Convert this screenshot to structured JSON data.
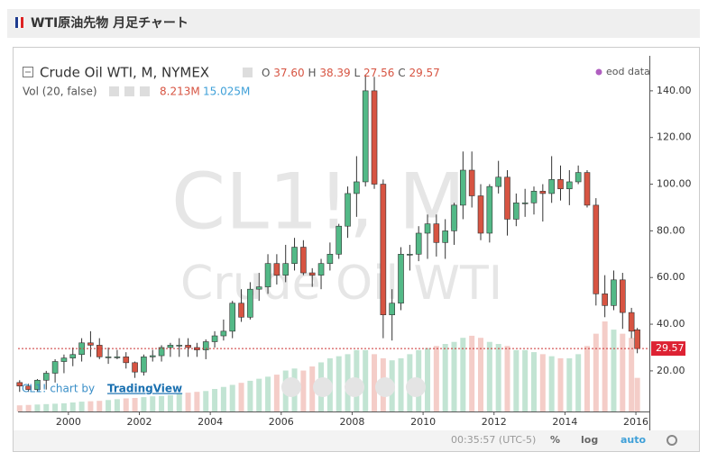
{
  "page_title": "WTI原油先物 月足チャート",
  "chart_data": {
    "type": "candlestick",
    "title": "Crude Oil WTI, M, NYMEX",
    "ohlc_legend": {
      "open_label": "O",
      "open": {
        "value": 37.6,
        "label": "37.60"
      },
      "high_label": "H",
      "high": {
        "value": 38.39,
        "label": "38.39"
      },
      "low_label": "L",
      "low": {
        "value": 27.56,
        "label": "27.56"
      },
      "close_label": "C",
      "close": {
        "value": 29.57,
        "label": "29.57"
      }
    },
    "volume_legend": {
      "name": "Vol (20, false)",
      "volume": {
        "value": 8.213,
        "label": "8.213M"
      },
      "volume_ma": {
        "value": 15.025,
        "label": "15.025M"
      }
    },
    "source_label": "eod data",
    "watermark": [
      "CL1!, M",
      "Crude Oil WTI"
    ],
    "credit": {
      "text": "CL1! chart by",
      "link": "TradingView"
    },
    "last_price": {
      "value": 29.57,
      "label": "29.57"
    },
    "x": [
      1998.625,
      1998.875,
      1999.125,
      1999.375,
      1999.625,
      1999.875,
      2000.125,
      2000.375,
      2000.625,
      2000.875,
      2001.125,
      2001.375,
      2001.625,
      2001.875,
      2002.125,
      2002.375,
      2002.625,
      2002.875,
      2003.125,
      2003.375,
      2003.625,
      2003.875,
      2004.125,
      2004.375,
      2004.625,
      2004.875,
      2005.125,
      2005.375,
      2005.625,
      2005.875,
      2006.125,
      2006.375,
      2006.625,
      2006.875,
      2007.125,
      2007.375,
      2007.625,
      2007.875,
      2008.125,
      2008.375,
      2008.625,
      2008.875,
      2009.125,
      2009.375,
      2009.625,
      2009.875,
      2010.125,
      2010.375,
      2010.625,
      2010.875,
      2011.125,
      2011.375,
      2011.625,
      2011.875,
      2012.125,
      2012.375,
      2012.625,
      2012.875,
      2013.125,
      2013.375,
      2013.625,
      2013.875,
      2014.125,
      2014.375,
      2014.625,
      2014.875,
      2015.125,
      2015.375,
      2015.625,
      2015.875,
      2016.04
    ],
    "open": [
      15,
      13.5,
      12,
      16,
      19,
      24,
      25.5,
      27,
      32,
      31,
      26,
      26,
      26,
      23.5,
      19.5,
      26,
      26.5,
      30,
      31,
      31,
      30,
      29,
      32.5,
      35,
      37,
      49,
      43,
      55,
      56,
      66,
      61,
      66,
      73,
      62,
      61,
      66,
      70,
      82,
      96,
      101,
      140,
      100,
      44,
      49,
      70,
      70,
      79,
      83,
      75,
      80,
      91,
      106,
      95,
      79,
      99,
      103,
      85,
      92,
      92,
      97,
      96,
      102,
      98,
      101,
      105,
      91,
      53,
      48,
      59,
      45,
      37.6
    ],
    "high": [
      16,
      14.5,
      16.5,
      20,
      25,
      27,
      30,
      34,
      37,
      34,
      30,
      29,
      28,
      24,
      27,
      29,
      31,
      32,
      34,
      34,
      32,
      33.5,
      37,
      42,
      50,
      55,
      58,
      62,
      70,
      70,
      74,
      77,
      76,
      64,
      68,
      75,
      83,
      99,
      112,
      147,
      146,
      102,
      55,
      73,
      74,
      82,
      87,
      87,
      85,
      92,
      114,
      114,
      100,
      100,
      110,
      106,
      96,
      98,
      99,
      100,
      112,
      108,
      106,
      108,
      106,
      94,
      61,
      63,
      62,
      47,
      38.39
    ],
    "low": [
      11,
      11,
      11,
      12,
      15,
      19,
      22,
      24,
      26,
      25,
      23,
      25,
      21,
      17,
      18,
      24,
      24,
      26,
      26,
      26,
      26,
      25,
      30,
      33,
      34,
      41,
      42,
      50,
      53,
      57,
      58,
      63,
      61,
      56,
      55,
      63,
      68,
      77,
      86,
      99,
      98,
      34,
      33,
      46,
      63,
      67,
      68,
      69,
      68,
      74,
      85,
      90,
      76,
      75,
      96,
      78,
      82,
      86,
      87,
      84,
      92,
      93,
      91,
      100,
      90,
      48,
      43,
      46,
      38,
      34,
      27.56
    ],
    "close": [
      13.5,
      12,
      16,
      19,
      24,
      25.5,
      27,
      32,
      31,
      26,
      26,
      26,
      23.5,
      19.5,
      26,
      26.5,
      30,
      31,
      31,
      30,
      29,
      32.5,
      35,
      37,
      49,
      43,
      55,
      56,
      66,
      61,
      66,
      73,
      62,
      61,
      66,
      70,
      82,
      96,
      101,
      140,
      100,
      44,
      49,
      70,
      70,
      79,
      83,
      75,
      80,
      91,
      106,
      95,
      79,
      99,
      103,
      85,
      92,
      92,
      97,
      96,
      102,
      98,
      101,
      105,
      91,
      53,
      48,
      59,
      45,
      37,
      29.57
    ],
    "volume": [
      1.5,
      1.6,
      1.7,
      1.8,
      1.9,
      2,
      2.2,
      2.4,
      2.5,
      2.6,
      2.8,
      3,
      3.2,
      3.3,
      3.5,
      3.7,
      3.8,
      4,
      4.3,
      4.6,
      4.8,
      5,
      5.5,
      6,
      6.5,
      7,
      7.5,
      8,
      8.5,
      9,
      10,
      10.5,
      10,
      11,
      12,
      13,
      13.5,
      14,
      15,
      15,
      14,
      13,
      12.5,
      13,
      14,
      15,
      15.5,
      16,
      16.5,
      17,
      18,
      18.5,
      18,
      17,
      16.5,
      16,
      15,
      15,
      14.5,
      14,
      13.5,
      13,
      13,
      14,
      16,
      19,
      22,
      20,
      19,
      18,
      8.213
    ],
    "up_color": "#53b987",
    "down_color": "#d75442",
    "xlim": [
      1998.58,
      2016.38
    ],
    "xticks": [
      2000,
      2002,
      2004,
      2006,
      2008,
      2010,
      2012,
      2014,
      2016
    ],
    "ylim": [
      2.6,
      155
    ],
    "yticks": [
      {
        "value": 20,
        "label": "20.00"
      },
      {
        "value": 40,
        "label": "40.00"
      },
      {
        "value": 60,
        "label": "60.00"
      },
      {
        "value": 80,
        "label": "80.00"
      },
      {
        "value": 100,
        "label": "100.00"
      },
      {
        "value": 120,
        "label": "120.00"
      },
      {
        "value": 140,
        "label": "140.00"
      }
    ],
    "toolbar": {
      "time": "00:35:57 (UTC-5)",
      "percent": "%",
      "log": "log",
      "auto": "auto"
    }
  }
}
